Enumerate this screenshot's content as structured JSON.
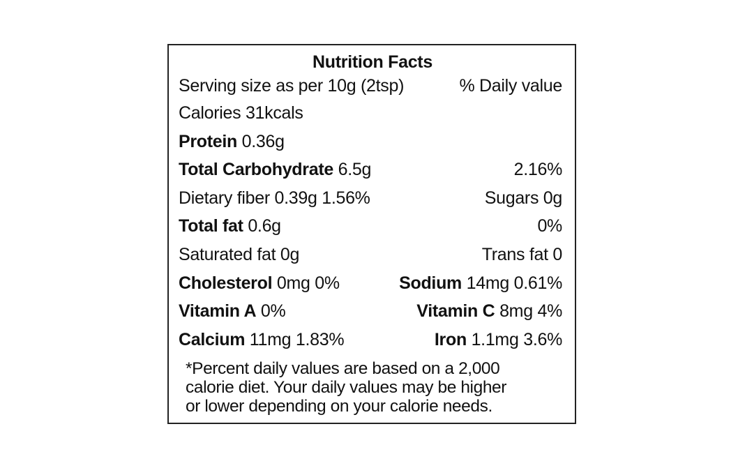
{
  "title": "Nutrition Facts",
  "serving": {
    "text": "Serving size as per 10g (2tsp)",
    "daily_header": "% Daily value"
  },
  "calories": "Calories 31kcals",
  "protein": {
    "label": "Protein",
    "value": " 0.36g"
  },
  "carbohydrate": {
    "label": "Total Carbohydrate",
    "value": " 6.5g",
    "dv": "2.16%"
  },
  "fiber": {
    "text": "Dietary fiber 0.39g 1.56%",
    "sugars": "Sugars 0g"
  },
  "fat": {
    "label": "Total fat",
    "value": " 0.6g",
    "dv": "0%"
  },
  "saturated": {
    "text": "Saturated fat 0g",
    "trans": "Trans fat 0"
  },
  "cholesterol": {
    "label": "Cholesterol",
    "value": " 0mg 0%"
  },
  "sodium": {
    "label": "Sodium",
    "value": " 14mg 0.61%"
  },
  "vitamin_a": {
    "label": "Vitamin A",
    "value": " 0%"
  },
  "vitamin_c": {
    "label": "Vitamin C",
    "value": " 8mg 4%"
  },
  "calcium": {
    "label": "Calcium",
    "value": " 11mg 1.83%"
  },
  "iron": {
    "label": "Iron",
    "value": " 1.1mg 3.6%"
  },
  "footnote": {
    "line1": "*Percent daily values are based on a 2,000",
    "line2": "calorie diet. Your daily values may be higher",
    "line3": "or lower depending on your calorie needs."
  }
}
